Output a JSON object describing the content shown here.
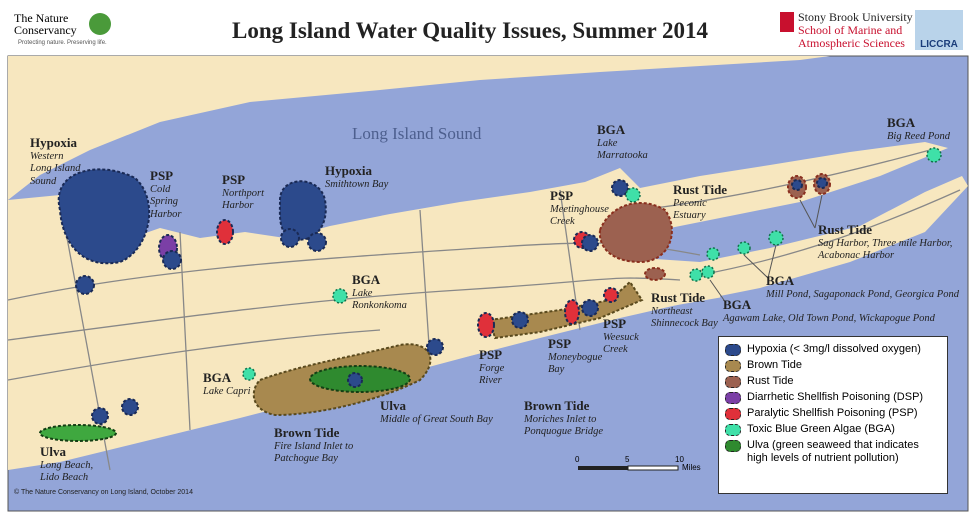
{
  "header": {
    "org_name": "The Nature Conservancy",
    "org_tagline": "Protecting nature. Preserving life.",
    "title": "Long Island Water Quality Issues, Summer 2014",
    "university": "Stony Brook University",
    "school": "School of Marine and\nAtmospheric Sciences",
    "partner": "LICCRA"
  },
  "map": {
    "water_label": "Long Island Sound",
    "labels": [
      {
        "title": "Hypoxia",
        "detail": "Western\nLong Island\nSound"
      },
      {
        "title": "PSP",
        "detail": "Cold\nSpring\nHarbor"
      },
      {
        "title": "PSP",
        "detail": "Northport\nHarbor"
      },
      {
        "title": "Hypoxia",
        "detail": "Smithtown Bay"
      },
      {
        "title": "BGA",
        "detail": "Lake\nRonkonkoma"
      },
      {
        "title": "BGA",
        "detail": "Lake\nMarratooka"
      },
      {
        "title": "PSP",
        "detail": "Meetinghouse\nCreek"
      },
      {
        "title": "Rust Tide",
        "detail": "Peconic\nEstuary"
      },
      {
        "title": "BGA",
        "detail": "Big Reed Pond"
      },
      {
        "title": "Rust Tide",
        "detail": "Sag Harbor, Three mile Harbor,\nAcabonac Harbor"
      },
      {
        "title": "BGA",
        "detail": "Mill Pond, Sagaponack Pond, Georgica Pond"
      },
      {
        "title": "BGA",
        "detail": "Agawam Lake, Old Town Pond, Wickapogue Pond"
      },
      {
        "title": "Rust Tide",
        "detail": "Northeast\nShinnecock Bay"
      },
      {
        "title": "PSP",
        "detail": "Weesuck\nCreek"
      },
      {
        "title": "PSP",
        "detail": "Moneybogue\nBay"
      },
      {
        "title": "PSP",
        "detail": "Forge\nRiver"
      },
      {
        "title": "Brown Tide",
        "detail": "Moriches Inlet to\nPonquogue Bridge"
      },
      {
        "title": "BGA",
        "detail": "Lake Capri"
      },
      {
        "title": "Ulva",
        "detail": "Middle of Great South Bay"
      },
      {
        "title": "Brown Tide",
        "detail": "Fire Island Inlet to\nPatchogue Bay"
      },
      {
        "title": "Ulva",
        "detail": "Long Beach,\nLido Beach"
      }
    ]
  },
  "legend": {
    "items": [
      {
        "label": "Hypoxia (< 3mg/l dissolved oxygen)",
        "color": "#2c4a8c"
      },
      {
        "label": "Brown Tide",
        "color": "#a8894f"
      },
      {
        "label": "Rust Tide",
        "color": "#9c6150"
      },
      {
        "label": "Diarrhetic Shellfish Poisoning (DSP)",
        "color": "#7b3fa6"
      },
      {
        "label": "Paralytic Shellfish Poisoning (PSP)",
        "color": "#e0303a"
      },
      {
        "label": "Toxic Blue Green Algae (BGA)",
        "color": "#3fe0a8"
      },
      {
        "label": "Ulva (green seaweed that indicates\nhigh levels of nutrient pollution)",
        "color": "#2f8a2f"
      }
    ]
  },
  "scale": {
    "ticks": [
      "0",
      "5",
      "10"
    ],
    "unit": "Miles"
  },
  "credit": "© The Nature Conservancy on Long Island, October 2014"
}
